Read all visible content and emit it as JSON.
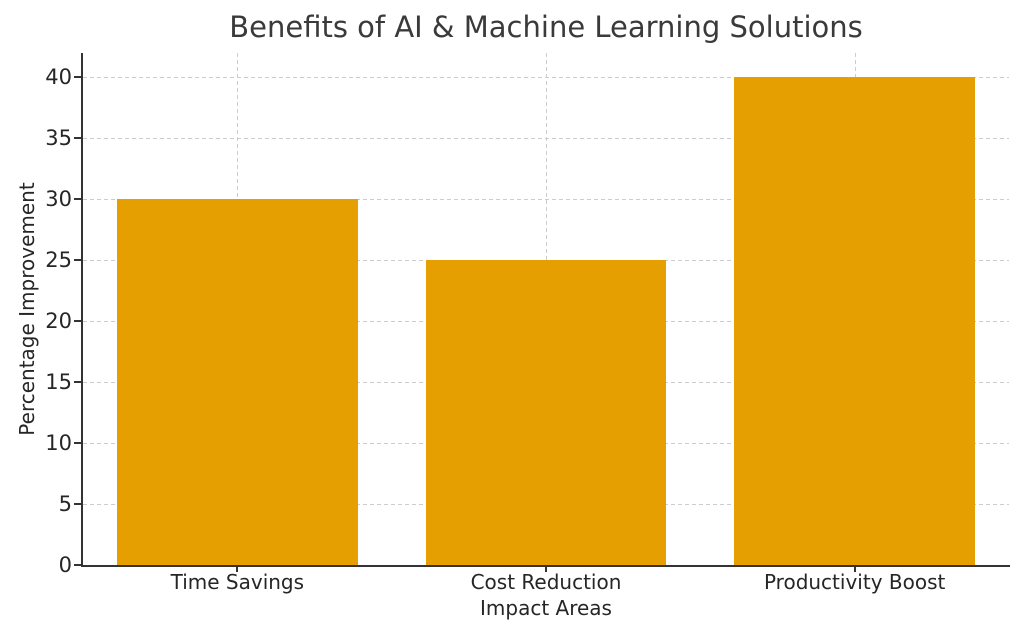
{
  "chart_data": {
    "type": "bar",
    "title": "Benefits of AI & Machine Learning Solutions",
    "xlabel": "Impact Areas",
    "ylabel": "Percentage Improvement",
    "categories": [
      "Time Savings",
      "Cost Reduction",
      "Productivity Boost"
    ],
    "values": [
      30,
      25,
      40
    ],
    "yticks": [
      0,
      5,
      10,
      15,
      20,
      25,
      30,
      35,
      40
    ],
    "ylim": [
      0,
      42
    ],
    "grid": "dashed, horizontal at every y tick and vertical at every bar center",
    "legend_position": "none",
    "bar_width_fraction": 0.78
  },
  "style": {
    "bar_color": "#E69F00",
    "grid_color": "#cccccc",
    "spine_color": "#333333",
    "title_color": "#3a3a3a",
    "tick_label_color": "#262626",
    "background": "#ffffff"
  }
}
